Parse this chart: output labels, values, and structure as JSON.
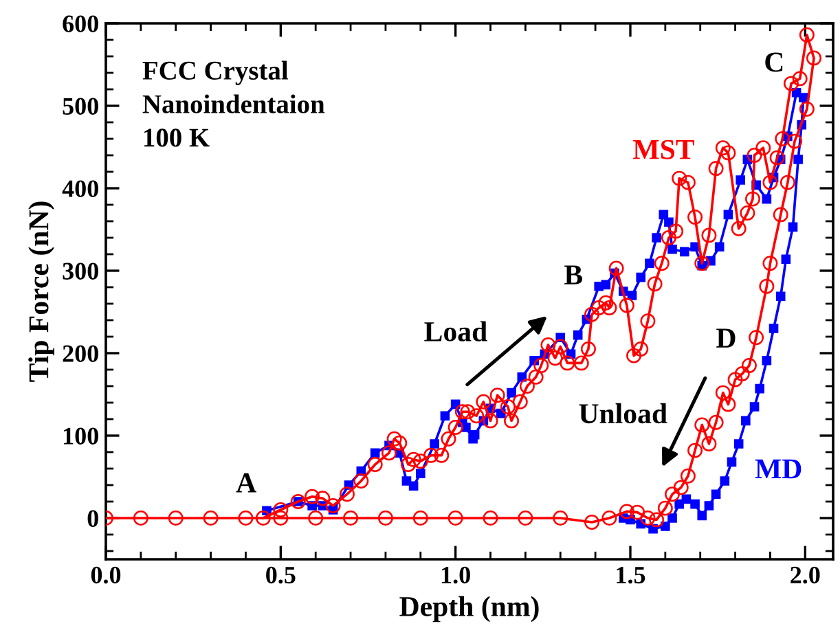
{
  "chart_data": {
    "type": "line",
    "xlabel": "Depth (nm)",
    "ylabel": "Tip Force (nN)",
    "xlim": [
      0,
      2.08
    ],
    "ylim": [
      -50,
      600
    ],
    "xticks": [
      {
        "value": 0,
        "label": "0.0"
      },
      {
        "value": 0.1,
        "label": null
      },
      {
        "value": 0.2,
        "label": null
      },
      {
        "value": 0.3,
        "label": null
      },
      {
        "value": 0.4,
        "label": null
      },
      0.5,
      {
        "value": 0.6,
        "label": null
      },
      {
        "value": 0.7,
        "label": null
      },
      {
        "value": 0.8,
        "label": null
      },
      {
        "value": 0.9,
        "label": null
      },
      {
        "value": 1.0,
        "label": "1.0"
      },
      {
        "value": 1.1,
        "label": null
      },
      {
        "value": 1.2,
        "label": null
      },
      {
        "value": 1.3,
        "label": null
      },
      {
        "value": 1.4,
        "label": null
      },
      1.5,
      {
        "value": 1.6,
        "label": null
      },
      {
        "value": 1.7,
        "label": null
      },
      {
        "value": 1.8,
        "label": null
      },
      {
        "value": 1.9,
        "label": null
      },
      {
        "value": 2.0,
        "label": "2.0"
      }
    ],
    "yticks": [
      {
        "value": -40,
        "label": null
      },
      {
        "value": -20,
        "label": null
      },
      0,
      {
        "value": 20,
        "label": null
      },
      {
        "value": 40,
        "label": null
      },
      {
        "value": 60,
        "label": null
      },
      {
        "value": 80,
        "label": null
      },
      100,
      {
        "value": 120,
        "label": null
      },
      {
        "value": 140,
        "label": null
      },
      {
        "value": 160,
        "label": null
      },
      {
        "value": 180,
        "label": null
      },
      200,
      {
        "value": 220,
        "label": null
      },
      {
        "value": 240,
        "label": null
      },
      {
        "value": 260,
        "label": null
      },
      {
        "value": 280,
        "label": null
      },
      300,
      {
        "value": 320,
        "label": null
      },
      {
        "value": 340,
        "label": null
      },
      {
        "value": 360,
        "label": null
      },
      {
        "value": 380,
        "label": null
      },
      400,
      {
        "value": 420,
        "label": null
      },
      {
        "value": 440,
        "label": null
      },
      {
        "value": 460,
        "label": null
      },
      {
        "value": 480,
        "label": null
      },
      500,
      {
        "value": 520,
        "label": null
      },
      {
        "value": 540,
        "label": null
      },
      {
        "value": 560,
        "label": null
      },
      {
        "value": 580,
        "label": null
      },
      600
    ],
    "grid": false,
    "legend": false,
    "series": [
      {
        "name": "MST",
        "color": "#ff0000",
        "marker": "circle",
        "x": [
          0.45,
          0.5,
          0.55,
          0.59,
          0.62,
          0.65,
          0.69,
          0.73,
          0.77,
          0.81,
          0.825,
          0.84,
          0.865,
          0.88,
          0.9,
          0.93,
          0.96,
          0.98,
          1.0,
          1.02,
          1.035,
          1.06,
          1.08,
          1.1,
          1.12,
          1.15,
          1.16,
          1.185,
          1.205,
          1.23,
          1.245,
          1.265,
          1.285,
          1.3,
          1.32,
          1.36,
          1.38,
          1.39,
          1.41,
          1.43,
          1.44,
          1.46,
          1.49,
          1.51,
          1.53,
          1.55,
          1.57,
          1.59,
          1.61,
          1.63,
          1.64,
          1.665,
          1.685,
          1.705,
          1.725,
          1.745,
          1.765,
          1.78,
          1.81,
          1.835,
          1.85,
          1.855,
          1.88,
          1.9,
          1.92,
          1.935,
          1.96,
          1.985,
          2.005,
          2.025,
          2.005,
          1.97,
          1.95,
          1.93,
          1.9,
          1.89,
          1.86,
          1.84,
          1.82,
          1.8,
          1.78,
          1.765,
          1.745,
          1.725,
          1.705,
          1.685,
          1.665,
          1.645,
          1.62,
          1.6,
          1.575,
          1.55,
          1.52,
          1.49,
          1.44,
          1.39,
          1.3,
          1.2,
          1.1,
          1.0,
          0.9,
          0.8,
          0.7,
          0.6,
          0.5,
          0.4,
          0.3,
          0.2,
          0.1,
          0.0
        ],
        "values": [
          0,
          10,
          20,
          26,
          24,
          15,
          29,
          45,
          65,
          79,
          96,
          91,
          65,
          71,
          69,
          76,
          76,
          96,
          110,
          129,
          129,
          124,
          141,
          118,
          149,
          135,
          118,
          141,
          160,
          171,
          185,
          210,
          194,
          208,
          188,
          188,
          205,
          247,
          255,
          261,
          255,
          303,
          258,
          197,
          205,
          239,
          284,
          309,
          340,
          348,
          412,
          407,
          365,
          309,
          343,
          424,
          449,
          443,
          351,
          370,
          387,
          440,
          449,
          407,
          437,
          460,
          527,
          533,
          586,
          558,
          496,
          457,
          407,
          368,
          309,
          281,
          219,
          185,
          175,
          168,
          138,
          152,
          116,
          90,
          113,
          82,
          51,
          37,
          29,
          12,
          -2,
          0,
          7,
          8,
          0,
          -5,
          0,
          0,
          0,
          0,
          0,
          0,
          0,
          0,
          0,
          0,
          0,
          0,
          0,
          0
        ]
      },
      {
        "name": "MD",
        "color": "#0000ff",
        "marker": "square",
        "x": [
          0.46,
          0.55,
          0.59,
          0.62,
          0.65,
          0.695,
          0.73,
          0.77,
          0.81,
          0.84,
          0.86,
          0.88,
          0.9,
          0.94,
          0.97,
          1.0,
          1.02,
          1.03,
          1.05,
          1.055,
          1.08,
          1.1,
          1.13,
          1.16,
          1.19,
          1.225,
          1.255,
          1.3,
          1.33,
          1.35,
          1.375,
          1.41,
          1.43,
          1.455,
          1.48,
          1.505,
          1.53,
          1.555,
          1.575,
          1.595,
          1.61,
          1.62,
          1.655,
          1.685,
          1.705,
          1.73,
          1.755,
          1.78,
          1.815,
          1.835,
          1.86,
          1.89,
          1.91,
          1.93,
          1.95,
          1.975,
          1.995,
          1.99,
          1.98,
          1.965,
          1.945,
          1.93,
          1.91,
          1.89,
          1.87,
          1.855,
          1.83,
          1.81,
          1.79,
          1.77,
          1.745,
          1.725,
          1.705,
          1.685,
          1.66,
          1.64,
          1.62,
          1.6,
          1.565,
          1.53,
          1.5,
          1.48
        ],
        "values": [
          9,
          20,
          15,
          15,
          10,
          40,
          57,
          79,
          88,
          79,
          45,
          39,
          54,
          90,
          124,
          138,
          116,
          110,
          96,
          101,
          118,
          133,
          127,
          152,
          171,
          191,
          199,
          219,
          199,
          222,
          241,
          281,
          283,
          297,
          275,
          270,
          292,
          309,
          340,
          368,
          359,
          326,
          323,
          329,
          306,
          312,
          329,
          368,
          410,
          435,
          404,
          387,
          413,
          435,
          463,
          516,
          510,
          477,
          435,
          353,
          314,
          269,
          230,
          191,
          157,
          135,
          118,
          90,
          68,
          45,
          29,
          15,
          3,
          17,
          23,
          17,
          0,
          -10,
          -13,
          -7,
          -2,
          0
        ]
      }
    ],
    "annotations": [
      "FCC Crystal\nNanoindentaion\n100 K",
      "A",
      "B",
      "C",
      "D",
      "Load",
      "Unload"
    ]
  }
}
